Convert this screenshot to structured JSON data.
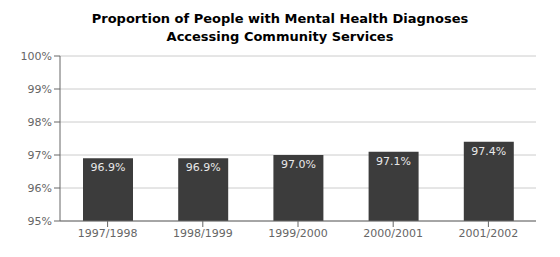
{
  "chart_data": {
    "type": "bar",
    "title": "Proportion of People with Mental Health Diagnoses\nAccessing Community Services",
    "categories": [
      "1997/1998",
      "1998/1999",
      "1999/2000",
      "2000/2001",
      "2001/2002"
    ],
    "values": [
      96.9,
      96.9,
      97.0,
      97.1,
      97.4
    ],
    "value_labels": [
      "96.9%",
      "96.9%",
      "97.0%",
      "97.1%",
      "97.4%"
    ],
    "data_labels": true,
    "color": "#3c3c3c",
    "ylim": [
      95,
      100
    ],
    "yticks": [
      {
        "value": 95,
        "label": "95%"
      },
      {
        "value": 96,
        "label": "96%"
      },
      {
        "value": 97,
        "label": "97%"
      },
      {
        "value": 98,
        "label": "98%"
      },
      {
        "value": 99,
        "label": "99%"
      },
      {
        "value": 100,
        "label": "100%"
      }
    ],
    "grid": true
  }
}
